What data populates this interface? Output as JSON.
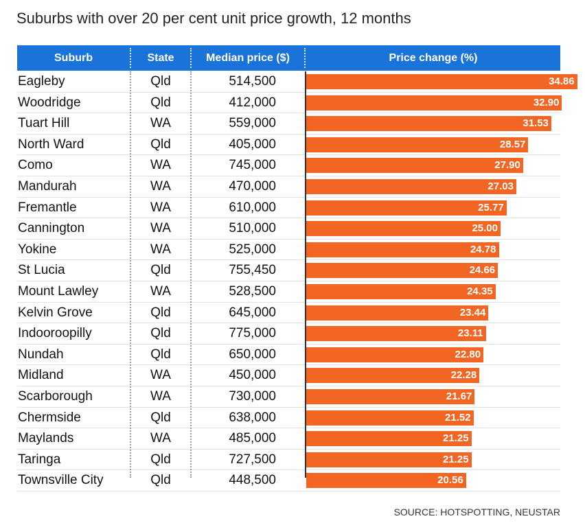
{
  "title": "Suburbs with over 20 per cent unit price growth, 12 months",
  "source": "SOURCE: HOTSPOTTING, NEUSTAR",
  "colors": {
    "header": "#1a73d9",
    "bar": "#f26522"
  },
  "chart_data": {
    "type": "table",
    "title": "Suburbs with over 20 per cent unit price growth, 12 months",
    "columns": [
      "Suburb",
      "State",
      "Median price ($)",
      "Price change (%)"
    ],
    "rows": [
      {
        "suburb": "Eagleby",
        "state": "Qld",
        "price": "514,500",
        "change": 34.86
      },
      {
        "suburb": "Woodridge",
        "state": "Qld",
        "price": "412,000",
        "change": 32.9
      },
      {
        "suburb": "Tuart Hill",
        "state": "WA",
        "price": "559,000",
        "change": 31.53
      },
      {
        "suburb": "North Ward",
        "state": "Qld",
        "price": "405,000",
        "change": 28.57
      },
      {
        "suburb": "Como",
        "state": "WA",
        "price": "745,000",
        "change": 27.9
      },
      {
        "suburb": "Mandurah",
        "state": "WA",
        "price": "470,000",
        "change": 27.03
      },
      {
        "suburb": "Fremantle",
        "state": "WA",
        "price": "610,000",
        "change": 25.77
      },
      {
        "suburb": "Cannington",
        "state": "WA",
        "price": "510,000",
        "change": 25.0
      },
      {
        "suburb": "Yokine",
        "state": "WA",
        "price": "525,000",
        "change": 24.78
      },
      {
        "suburb": "St Lucia",
        "state": "Qld",
        "price": "755,450",
        "change": 24.66
      },
      {
        "suburb": "Mount Lawley",
        "state": "WA",
        "price": "528,500",
        "change": 24.35
      },
      {
        "suburb": "Kelvin Grove",
        "state": "Qld",
        "price": "645,000",
        "change": 23.44
      },
      {
        "suburb": "Indooroopilly",
        "state": "Qld",
        "price": "775,000",
        "change": 23.11
      },
      {
        "suburb": "Nundah",
        "state": "Qld",
        "price": "650,000",
        "change": 22.8
      },
      {
        "suburb": "Midland",
        "state": "WA",
        "price": "450,000",
        "change": 22.28
      },
      {
        "suburb": "Scarborough",
        "state": "WA",
        "price": "730,000",
        "change": 21.67
      },
      {
        "suburb": "Chermside",
        "state": "Qld",
        "price": "638,000",
        "change": 21.52
      },
      {
        "suburb": "Maylands",
        "state": "WA",
        "price": "485,000",
        "change": 21.25
      },
      {
        "suburb": "Taringa",
        "state": "Qld",
        "price": "727,500",
        "change": 21.25
      },
      {
        "suburb": "Townsville City",
        "state": "Qld",
        "price": "448,500",
        "change": 20.56
      }
    ]
  }
}
